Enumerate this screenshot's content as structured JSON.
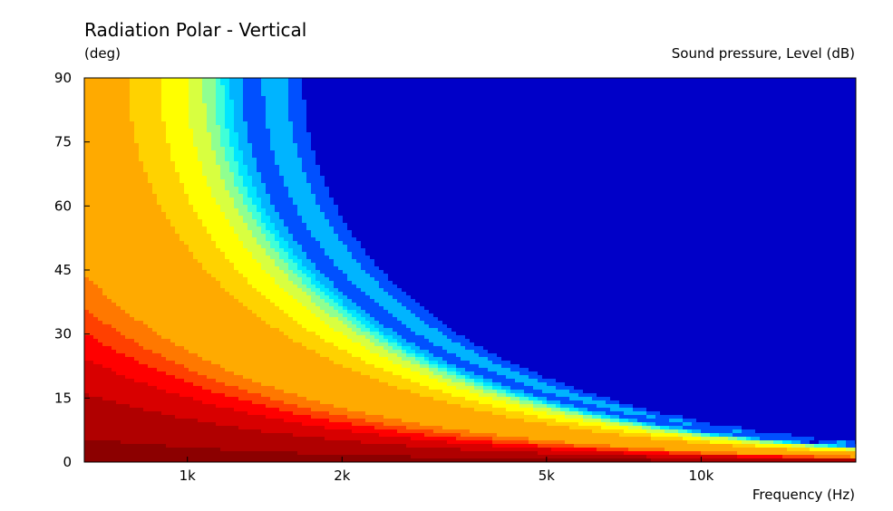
{
  "chart_data": {
    "type": "heatmap",
    "title": "Radiation Polar - Vertical",
    "ylabel": "(deg)",
    "xlabel": "Frequency  (Hz)",
    "zlabel": "Sound pressure, Level  (dB)",
    "x_scale": "log",
    "xlim": [
      630,
      20000
    ],
    "ylim": [
      0,
      90
    ],
    "x_ticks": [
      {
        "value": 1000,
        "label": "1k"
      },
      {
        "value": 2000,
        "label": "2k"
      },
      {
        "value": 5000,
        "label": "5k"
      },
      {
        "value": 10000,
        "label": "10k"
      }
    ],
    "y_ticks": [
      {
        "value": 0,
        "label": "0"
      },
      {
        "value": 15,
        "label": "15"
      },
      {
        "value": 30,
        "label": "30"
      },
      {
        "value": 45,
        "label": "45"
      },
      {
        "value": 60,
        "label": "60"
      },
      {
        "value": 75,
        "label": "75"
      },
      {
        "value": 90,
        "label": "90"
      }
    ],
    "colormap": [
      "#0000c8",
      "#0050ff",
      "#00b4ff",
      "#00e6ff",
      "#40ffd8",
      "#90ff90",
      "#d8ff40",
      "#ffff00",
      "#ffd200",
      "#ffaa00",
      "#ff7800",
      "#ff4000",
      "#ff0000",
      "#d80000",
      "#b00000",
      "#8c0000"
    ],
    "grid": false,
    "legend": "none"
  }
}
